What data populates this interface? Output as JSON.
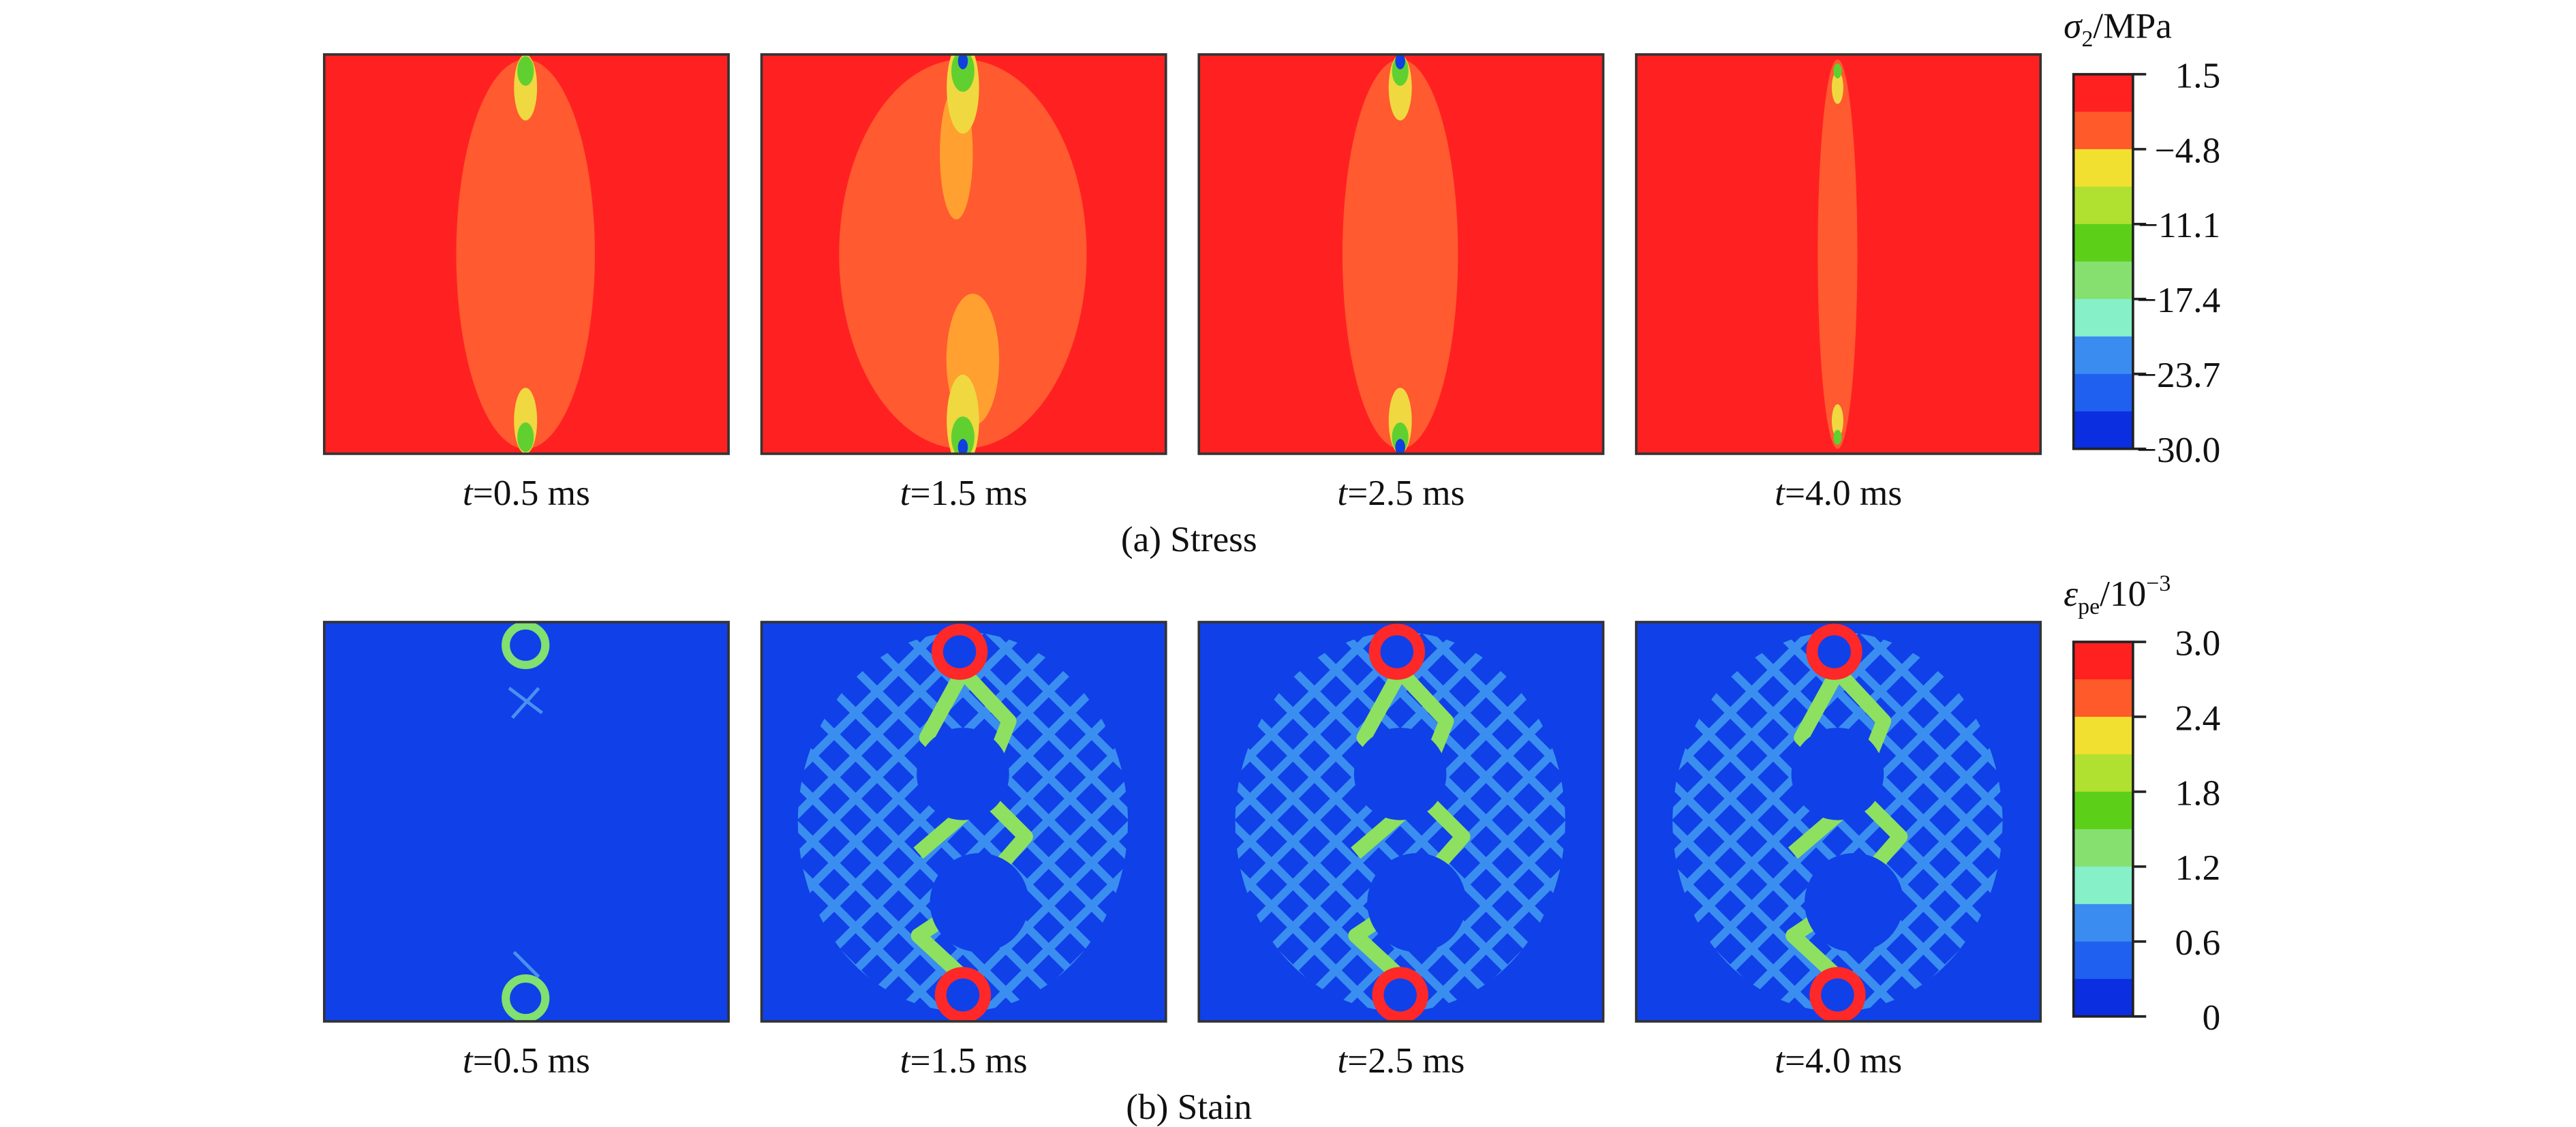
{
  "rows": [
    {
      "caption": "(a) Stress",
      "colorbar": {
        "title": {
          "symbol": "σ",
          "sub": "2",
          "rest": "/MPa"
        },
        "ticks": [
          "1.5",
          "−4.8",
          "−11.1",
          "−17.4",
          "−23.7",
          "−30.0"
        ]
      },
      "panels": [
        {
          "var": "t",
          "eq": "=0.5 ms"
        },
        {
          "var": "t",
          "eq": "=1.5 ms"
        },
        {
          "var": "t",
          "eq": "=2.5 ms"
        },
        {
          "var": "t",
          "eq": "=4.0 ms"
        }
      ]
    },
    {
      "caption": "(b) Stain",
      "colorbar": {
        "title": {
          "symbol": "ε",
          "sub": "pe",
          "rest": "/10",
          "sup": "−3"
        },
        "ticks": [
          "3.0",
          "2.4",
          "1.8",
          "1.2",
          "0.6",
          "0"
        ]
      },
      "panels": [
        {
          "var": "t",
          "eq": "=0.5 ms"
        },
        {
          "var": "t",
          "eq": "=1.5 ms"
        },
        {
          "var": "t",
          "eq": "=2.5 ms"
        },
        {
          "var": "t",
          "eq": "=4.0 ms"
        }
      ]
    }
  ]
}
